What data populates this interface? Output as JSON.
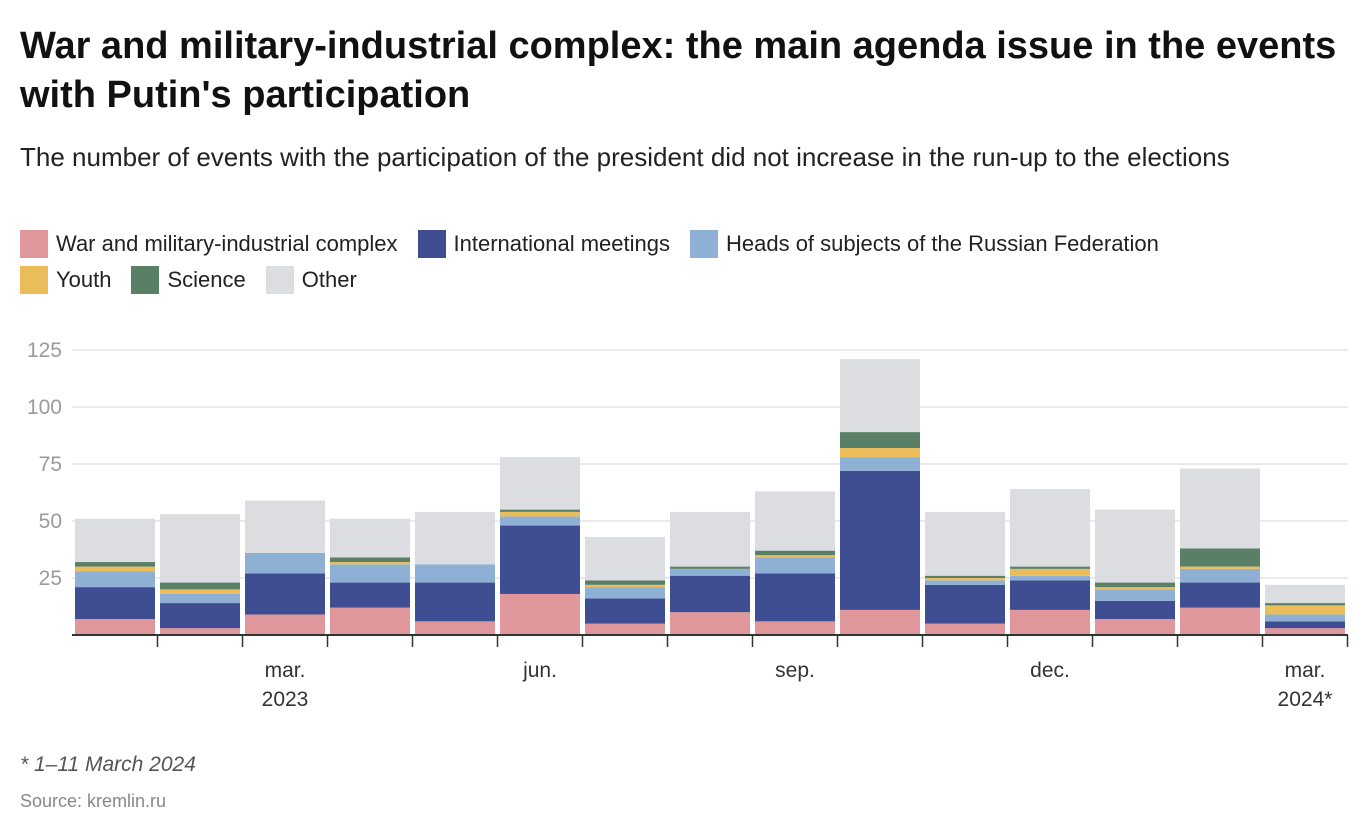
{
  "title": "War and military-industrial complex: the main agenda issue in the events with Putin's participation",
  "subtitle": "The number of events with the participation of the president did not increase in the run-up to the elections",
  "note": "* 1–11 March 2024",
  "source": "Source: kremlin.ru",
  "chart_data": {
    "type": "bar",
    "stacked": true,
    "grid": true,
    "legend_position": "top",
    "ylim": [
      0,
      125
    ],
    "y_ticks": [
      25,
      50,
      75,
      100,
      125
    ],
    "x_tick_labels": [
      {
        "index": 2,
        "line1": "mar.",
        "line2": "2023"
      },
      {
        "index": 5,
        "line1": "jun.",
        "line2": ""
      },
      {
        "index": 8,
        "line1": "sep.",
        "line2": ""
      },
      {
        "index": 11,
        "line1": "dec.",
        "line2": ""
      },
      {
        "index": 14,
        "line1": "mar.",
        "line2": "2024*"
      }
    ],
    "categories": [
      "Jan 2023",
      "Feb 2023",
      "Mar 2023",
      "Apr 2023",
      "May 2023",
      "Jun 2023",
      "Jul 2023",
      "Aug 2023",
      "Sep 2023",
      "Oct 2023",
      "Nov 2023",
      "Dec 2023",
      "Jan 2024",
      "Feb 2024",
      "Mar 2024*"
    ],
    "series": [
      {
        "name": "War and military-industrial complex",
        "color": "#e0979b",
        "values": [
          7,
          3,
          9,
          12,
          6,
          18,
          5,
          10,
          6,
          11,
          5,
          11,
          7,
          12,
          3
        ]
      },
      {
        "name": "International meetings",
        "color": "#3f4d93",
        "values": [
          14,
          11,
          18,
          11,
          17,
          30,
          11,
          16,
          21,
          61,
          17,
          13,
          8,
          11,
          3
        ]
      },
      {
        "name": "Heads of subjects of the Russian Federation",
        "color": "#8eb0d4",
        "values": [
          7,
          4,
          9,
          8,
          8,
          4,
          5,
          3,
          7,
          6,
          2,
          2,
          5,
          6,
          3
        ]
      },
      {
        "name": "Youth",
        "color": "#ebbd5a",
        "values": [
          2,
          2,
          0,
          1,
          0,
          2,
          1,
          0,
          1,
          4,
          1,
          3,
          1,
          1,
          4
        ]
      },
      {
        "name": "Science",
        "color": "#5a7f67",
        "values": [
          2,
          3,
          0,
          2,
          0,
          1,
          2,
          1,
          2,
          7,
          1,
          1,
          2,
          8,
          1
        ]
      },
      {
        "name": "Other",
        "color": "#dcdde0",
        "values": [
          19,
          30,
          23,
          17,
          23,
          23,
          19,
          24,
          26,
          32,
          28,
          34,
          32,
          35,
          8
        ]
      }
    ]
  }
}
